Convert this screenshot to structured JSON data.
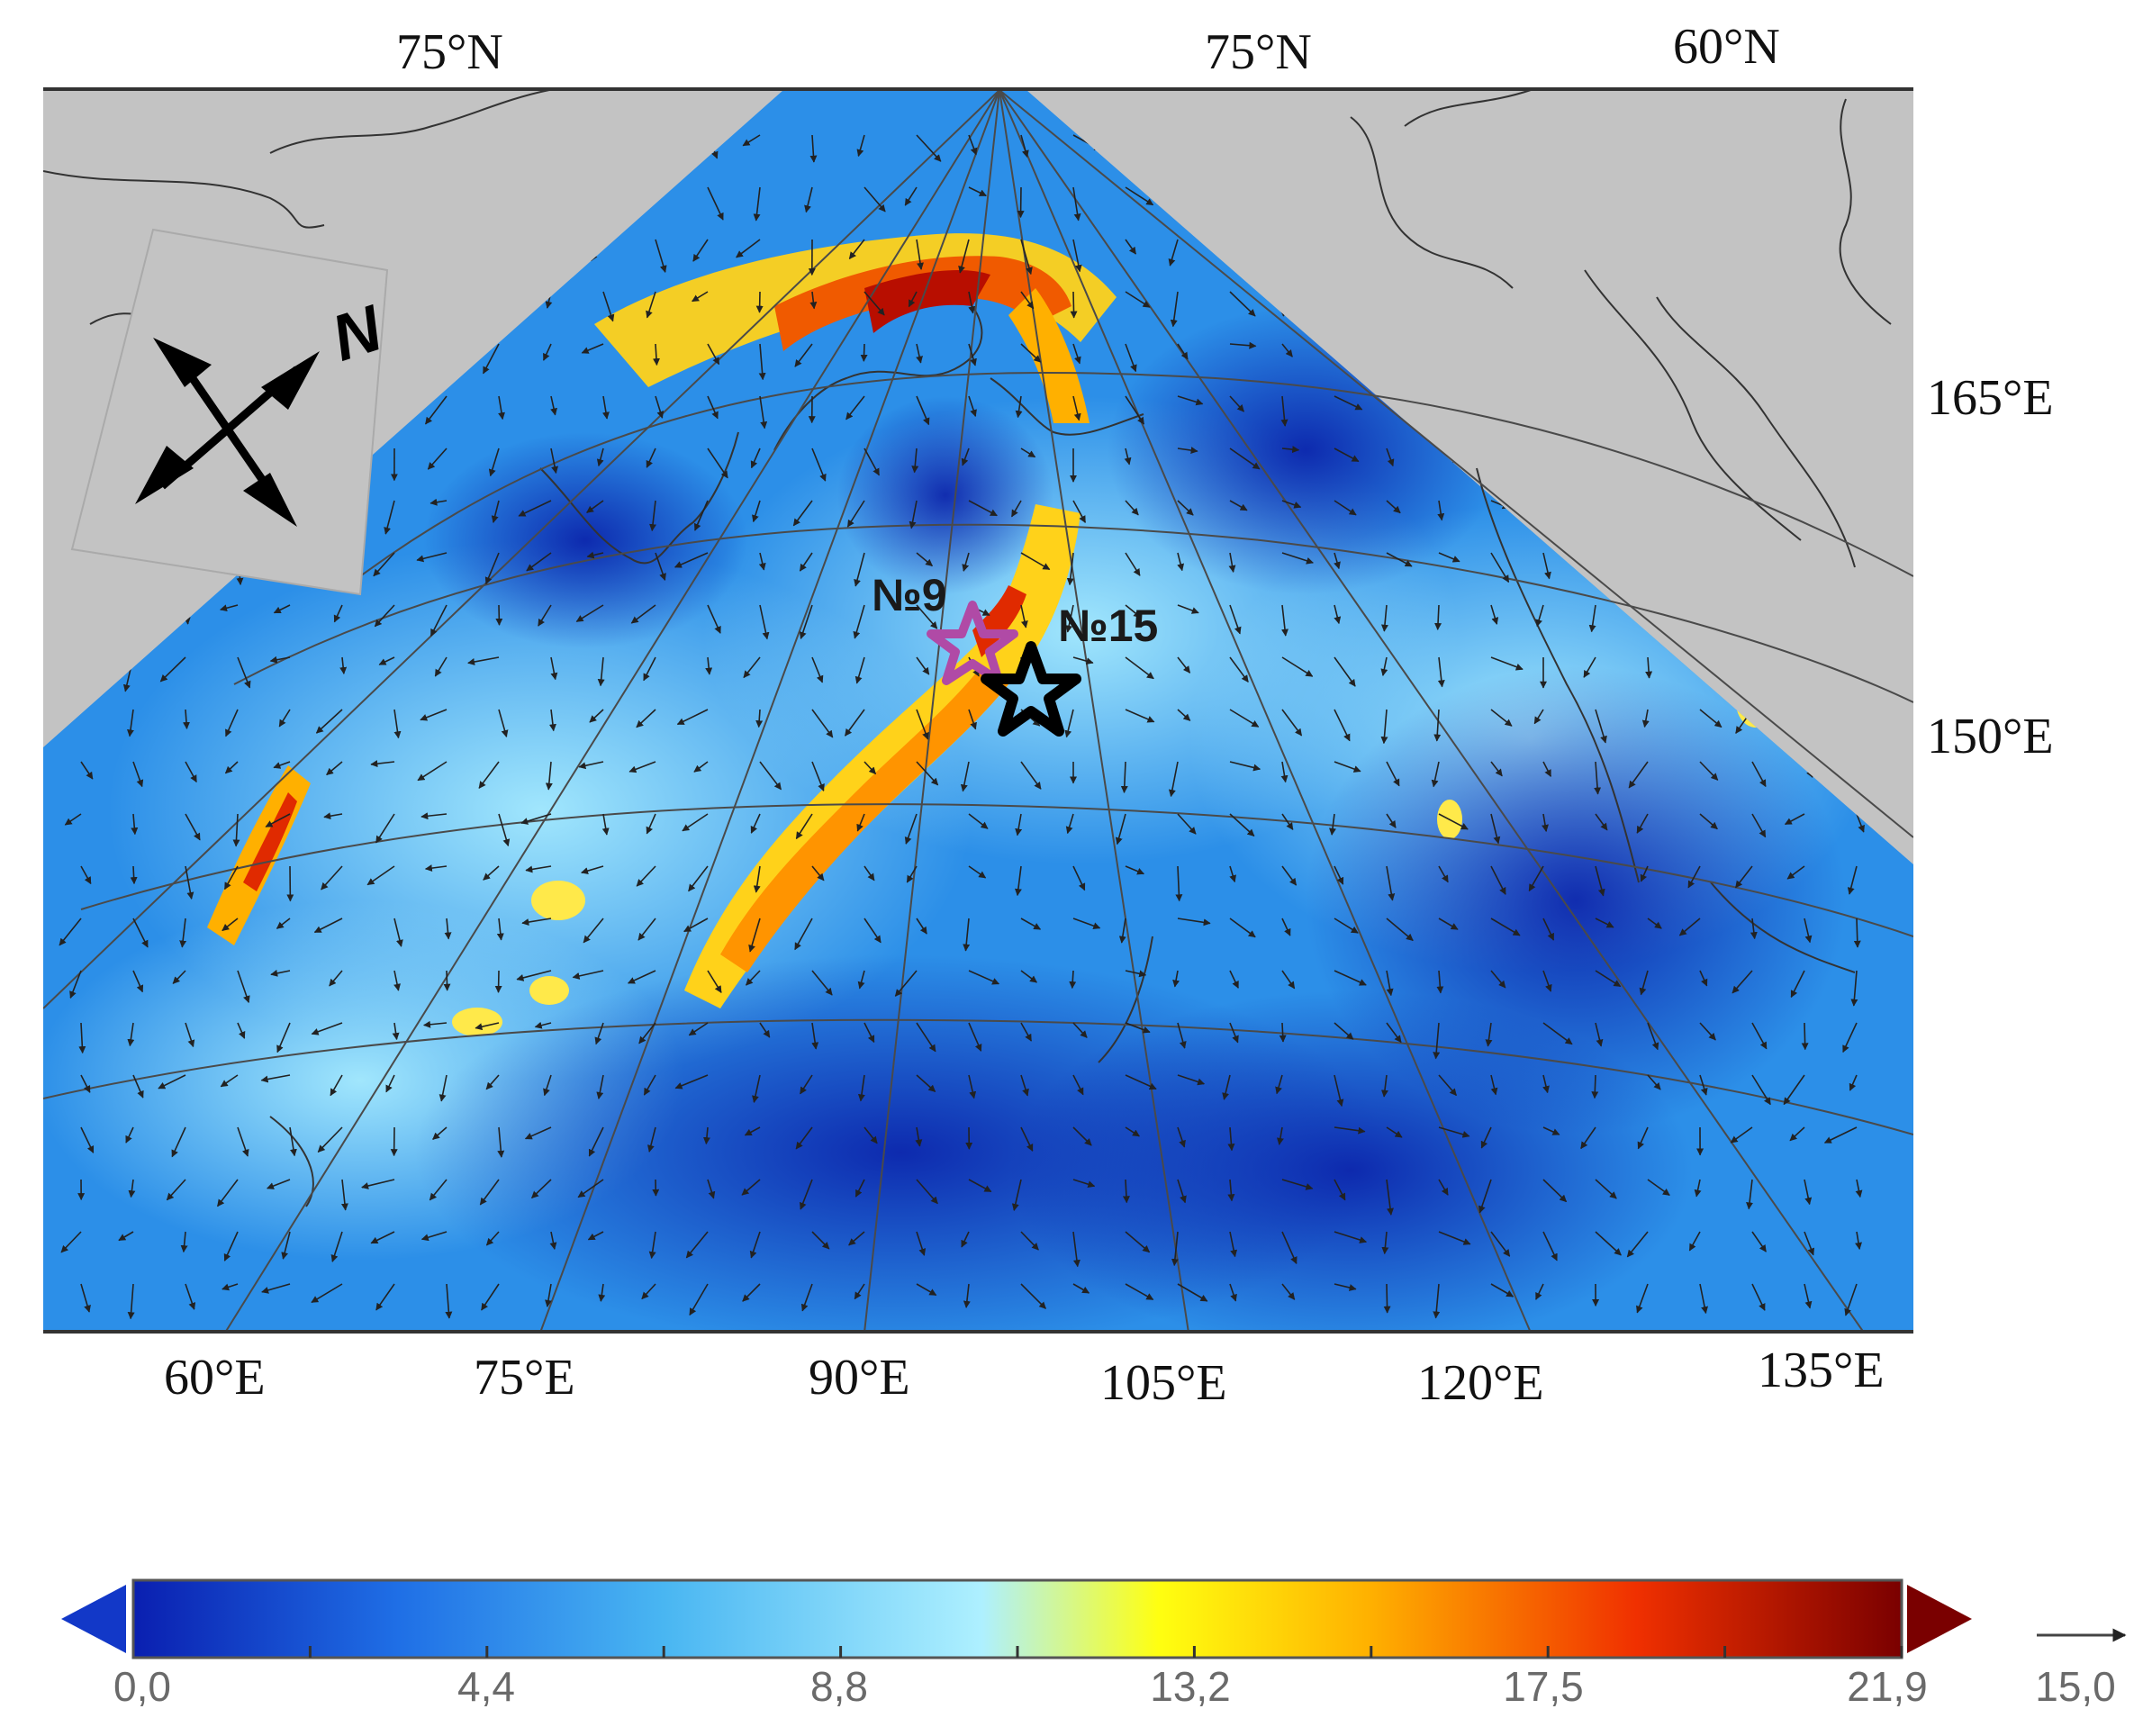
{
  "map": {
    "top_lat_labels": [
      "75°N",
      "75°N",
      "60°N"
    ],
    "right_lon_labels": [
      "165°E",
      "150°E"
    ],
    "bottom_lon_labels": [
      "60°E",
      "75°E",
      "90°E",
      "105°E",
      "120°E",
      "135°E"
    ],
    "north_label": "N",
    "sites": [
      {
        "label": "№9",
        "color": "#b04aa6"
      },
      {
        "label": "№15",
        "color": "#000000"
      }
    ]
  },
  "colorbar": {
    "ticks": [
      "0,0",
      "4,4",
      "8,8",
      "13,2",
      "17,5",
      "21,9"
    ],
    "range": [
      0.0,
      21.9
    ],
    "colors": [
      "#0a1fb0",
      "#1f6fe6",
      "#49b6f2",
      "#aef0ff",
      "#ffff10",
      "#ffb000",
      "#f03000",
      "#7a0000"
    ],
    "under_color": "#1238c8",
    "over_color": "#7a0000",
    "vector_reference": "15,0"
  }
}
